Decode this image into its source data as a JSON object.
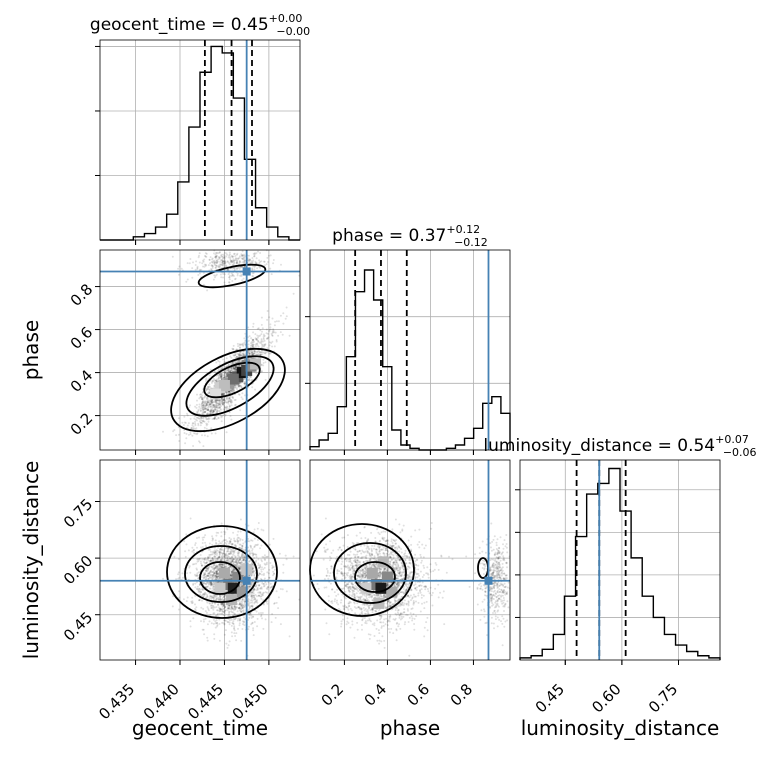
{
  "chart_data": {
    "type": "corner",
    "parameters": [
      "geocent_time",
      "phase",
      "luminosity_distance"
    ],
    "truths": {
      "geocent_time": 0.4475,
      "phase": 0.87,
      "luminosity_distance": 0.54
    },
    "titles": {
      "geocent_time": {
        "prefix": "geocent_time = 0.45",
        "plus": "+0.00",
        "minus": "−0.00"
      },
      "phase": {
        "prefix": "phase = 0.37",
        "plus": "+0.12",
        "minus": "−0.12"
      },
      "luminosity_distance": {
        "prefix": "luminosity_distance = 0.54",
        "plus": "+0.07",
        "minus": "−0.06"
      }
    },
    "axes": {
      "geocent_time": {
        "range": [
          0.431,
          0.4535
        ],
        "ticks": [
          0.435,
          0.44,
          0.445,
          0.45
        ],
        "tick_labels": [
          "0.435",
          "0.440",
          "0.445",
          "0.450"
        ]
      },
      "phase": {
        "range": [
          0.04,
          0.97
        ],
        "ticks": [
          0.2,
          0.4,
          0.6,
          0.8
        ],
        "tick_labels": [
          "0.2",
          "0.4",
          "0.6",
          "0.8"
        ]
      },
      "luminosity_distance": {
        "range": [
          0.33,
          0.86
        ],
        "ticks": [
          0.45,
          0.6,
          0.75
        ],
        "tick_labels": [
          "0.45",
          "0.60",
          "0.75"
        ]
      }
    },
    "diagonal": {
      "geocent_time": {
        "values": [
          0,
          0,
          0,
          1,
          2,
          4,
          8,
          18,
          35,
          52,
          60,
          58,
          44,
          25,
          10,
          4,
          1,
          0
        ],
        "ylim": [
          0,
          62
        ],
        "quantiles": [
          0.4428,
          0.4458,
          0.4481
        ]
      },
      "phase": {
        "values": [
          2,
          6,
          10,
          26,
          56,
          95,
          108,
          90,
          50,
          12,
          3,
          1,
          0,
          0,
          0,
          1,
          3,
          7,
          13,
          28,
          32,
          22
        ],
        "ylim": [
          0,
          120
        ],
        "quantiles": [
          0.25,
          0.37,
          0.49
        ]
      },
      "luminosity_distance": {
        "values": [
          1,
          2,
          5,
          12,
          30,
          58,
          78,
          83,
          90,
          70,
          48,
          30,
          20,
          12,
          7,
          4,
          2,
          1
        ],
        "ylim": [
          0,
          94
        ],
        "quantiles": [
          0.48,
          0.54,
          0.61
        ]
      }
    },
    "grid": true
  }
}
